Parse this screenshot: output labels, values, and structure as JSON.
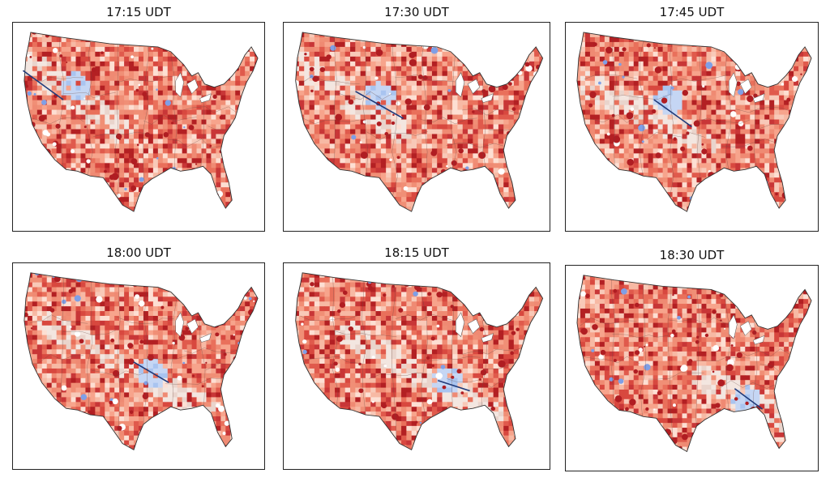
{
  "figure": {
    "panels": [
      {
        "title": "17:15 UDT",
        "band_axis": [
          [
            0.07,
            0.2
          ],
          [
            0.43,
            0.52
          ]
        ],
        "blob_center": [
          0.25,
          0.31
        ],
        "path": [
          [
            0.04,
            0.23
          ],
          [
            0.2,
            0.37
          ]
        ]
      },
      {
        "title": "17:30 UDT",
        "band_axis": [
          [
            0.07,
            0.2
          ],
          [
            0.43,
            0.52
          ]
        ],
        "blob_center": [
          0.36,
          0.36
        ],
        "path": [
          [
            0.27,
            0.33
          ],
          [
            0.45,
            0.46
          ]
        ]
      },
      {
        "title": "17:45 UDT",
        "band_axis": [
          [
            0.1,
            0.3
          ],
          [
            0.55,
            0.58
          ]
        ],
        "blob_center": [
          0.41,
          0.38
        ],
        "path": [
          [
            0.35,
            0.37
          ],
          [
            0.5,
            0.5
          ]
        ]
      },
      {
        "title": "18:00 UDT",
        "band_axis": [
          [
            0.15,
            0.3
          ],
          [
            0.75,
            0.7
          ]
        ],
        "blob_center": [
          0.55,
          0.54
        ],
        "path": [
          [
            0.48,
            0.48
          ],
          [
            0.62,
            0.58
          ]
        ]
      },
      {
        "title": "18:15 UDT",
        "band_axis": [
          [
            0.25,
            0.35
          ],
          [
            0.78,
            0.73
          ]
        ],
        "blob_center": [
          0.62,
          0.57
        ],
        "path": [
          [
            0.58,
            0.57
          ],
          [
            0.7,
            0.62
          ]
        ]
      },
      {
        "title": "18:30 UDT",
        "band_axis": [
          [
            0.55,
            0.55
          ],
          [
            0.85,
            0.75
          ]
        ],
        "blob_center": [
          0.72,
          0.66
        ],
        "path": [
          [
            0.67,
            0.6
          ],
          [
            0.78,
            0.7
          ]
        ]
      }
    ]
  }
}
